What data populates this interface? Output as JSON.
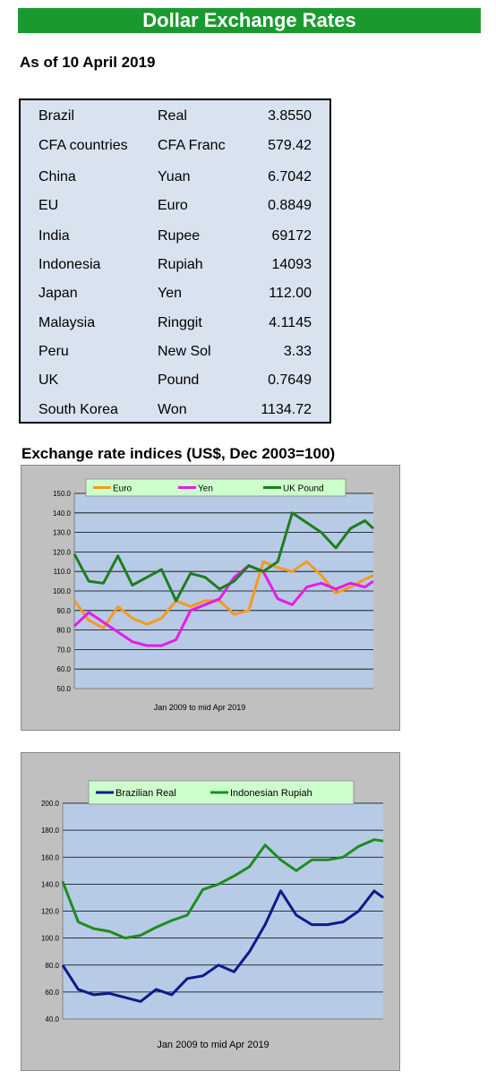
{
  "header": {
    "title": "Dollar Exchange Rates",
    "as_of": "As of 10 April 2019"
  },
  "rates": [
    {
      "country": "Brazil",
      "currency": "Real",
      "rate": "3.8550"
    },
    {
      "country": "CFA countries",
      "currency": "CFA Franc",
      "rate": "579.42"
    },
    {
      "country": "China",
      "currency": "Yuan",
      "rate": "6.7042"
    },
    {
      "country": "EU",
      "currency": "Euro",
      "rate": "0.8849"
    },
    {
      "country": "India",
      "currency": "Rupee",
      "rate": "69172"
    },
    {
      "country": "Indonesia",
      "currency": "Rupiah",
      "rate": "14093"
    },
    {
      "country": "Japan",
      "currency": "Yen",
      "rate": "112.00"
    },
    {
      "country": "Malaysia",
      "currency": "Ringgit",
      "rate": "4.1145"
    },
    {
      "country": "Peru",
      "currency": "New Sol",
      "rate": "3.33"
    },
    {
      "country": "UK",
      "currency": "Pound",
      "rate": "0.7649"
    },
    {
      "country": "South Korea",
      "currency": "Won",
      "rate": "1134.72"
    }
  ],
  "indices_title": "Exchange rate indices (US$, Dec 2003=100)",
  "chart_data": [
    {
      "type": "line",
      "xlabel": "Jan 2009  to mid Apr 2019",
      "ylim": [
        50,
        150
      ],
      "yticks": [
        "50.0",
        "60.0",
        "70.0",
        "80.0",
        "90.0",
        "100.0",
        "110.0",
        "120.0",
        "130.0",
        "140.0",
        "150.0"
      ],
      "ytick_values": [
        50,
        60,
        70,
        80,
        90,
        100,
        110,
        120,
        130,
        140,
        150
      ],
      "legend_position": "top",
      "grid": true,
      "x": [
        2009.0,
        2009.5,
        2010.0,
        2010.5,
        2011.0,
        2011.5,
        2012.0,
        2012.5,
        2013.0,
        2013.5,
        2014.0,
        2014.5,
        2015.0,
        2015.5,
        2016.0,
        2016.5,
        2017.0,
        2017.5,
        2018.0,
        2018.5,
        2019.0,
        2019.29
      ],
      "series": [
        {
          "name": "Euro",
          "color": "#f59a1e",
          "values": [
            95,
            85,
            81,
            92,
            86,
            83,
            86,
            95,
            92,
            95,
            95,
            88,
            90,
            115,
            112,
            110,
            115,
            108,
            99,
            102,
            106,
            108
          ]
        },
        {
          "name": "Yen",
          "color": "#e61ce6",
          "values": [
            82,
            89,
            84,
            79,
            74,
            72,
            72,
            75,
            90,
            93,
            96,
            107,
            113,
            110,
            96,
            93,
            102,
            104,
            101,
            104,
            102,
            105
          ]
        },
        {
          "name": "UK Pound",
          "color": "#1e7d1e",
          "values": [
            119,
            105,
            104,
            118,
            103,
            107,
            111,
            95,
            109,
            107,
            101,
            105,
            113,
            110,
            115,
            140,
            135,
            130,
            122,
            132,
            136,
            132
          ]
        }
      ]
    },
    {
      "type": "line",
      "xlabel": "Jan 2009   to mid Apr 2019",
      "ylim": [
        40,
        200
      ],
      "yticks": [
        "40.0",
        "60.0",
        "80.0",
        "100.0",
        "120.0",
        "140.0",
        "160.0",
        "180.0",
        "200.0"
      ],
      "ytick_values": [
        40,
        60,
        80,
        100,
        120,
        140,
        160,
        180,
        200
      ],
      "legend_position": "top",
      "grid": true,
      "x": [
        2009.0,
        2009.5,
        2010.0,
        2010.5,
        2011.0,
        2011.5,
        2012.0,
        2012.5,
        2013.0,
        2013.5,
        2014.0,
        2014.5,
        2015.0,
        2015.5,
        2016.0,
        2016.5,
        2017.0,
        2017.5,
        2018.0,
        2018.5,
        2019.0,
        2019.29
      ],
      "series": [
        {
          "name": "Brazilian Real",
          "color": "#0d1a8c",
          "values": [
            80,
            62,
            58,
            59,
            56,
            53,
            62,
            58,
            70,
            72,
            80,
            75,
            90,
            110,
            135,
            117,
            110,
            110,
            112,
            120,
            135,
            130
          ]
        },
        {
          "name": "Indonesian Rupiah",
          "color": "#1e8c1e",
          "values": [
            142,
            112,
            107,
            105,
            100,
            102,
            108,
            113,
            117,
            136,
            140,
            146,
            153,
            169,
            158,
            150,
            158,
            158,
            160,
            168,
            173,
            172
          ]
        }
      ]
    }
  ]
}
